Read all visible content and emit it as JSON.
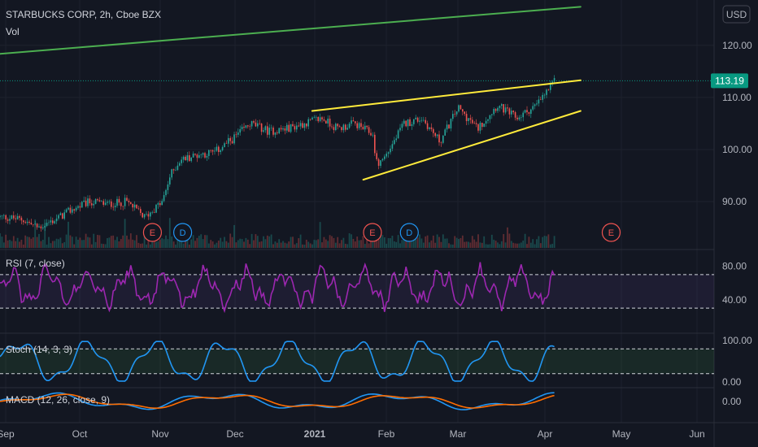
{
  "header": {
    "title": "STARBUCKS CORP, 2h, Cboe BZX",
    "volume_label": "Vol",
    "currency_button": "USD"
  },
  "colors": {
    "background": "#131722",
    "up_candle": "#26a69a",
    "down_candle": "#ef5350",
    "resistance_line": "#4caf50",
    "wedge_lines": "#ffeb3b",
    "rsi_line": "#9c27b0",
    "stoch_line": "#2196f3",
    "macd_line": "#2196f3",
    "signal_line": "#ff6d00",
    "price_tag": "#089981",
    "earnings_marker": "#ef5350",
    "dividend_marker": "#2196f3"
  },
  "chart_data": [
    {
      "type": "candlestick",
      "pane": "price",
      "title": "STARBUCKS CORP, 2h, Cboe BZX",
      "y_ticks": [
        90.0,
        100.0,
        110.0,
        120.0
      ],
      "ylim": [
        80.8,
        128.7
      ],
      "current_price": 113.19,
      "x_ticks": [
        "Sep",
        "Oct",
        "Nov",
        "Dec",
        "2021",
        "Feb",
        "Mar",
        "Apr",
        "May",
        "Jun"
      ],
      "close_series": [
        {
          "x": "2020-09-01",
          "y": 87.0
        },
        {
          "x": "2020-09-08",
          "y": 86.5
        },
        {
          "x": "2020-09-14",
          "y": 85.0
        },
        {
          "x": "2020-09-21",
          "y": 86.5
        },
        {
          "x": "2020-09-28",
          "y": 88.5
        },
        {
          "x": "2020-10-05",
          "y": 90.0
        },
        {
          "x": "2020-10-12",
          "y": 89.5
        },
        {
          "x": "2020-10-19",
          "y": 90.0
        },
        {
          "x": "2020-10-26",
          "y": 87.0
        },
        {
          "x": "2020-11-02",
          "y": 90.0
        },
        {
          "x": "2020-11-05",
          "y": 95.0
        },
        {
          "x": "2020-11-09",
          "y": 98.0
        },
        {
          "x": "2020-11-16",
          "y": 99.0
        },
        {
          "x": "2020-11-23",
          "y": 99.5
        },
        {
          "x": "2020-11-30",
          "y": 102.0
        },
        {
          "x": "2020-12-07",
          "y": 105.0
        },
        {
          "x": "2020-12-14",
          "y": 103.5
        },
        {
          "x": "2020-12-21",
          "y": 104.0
        },
        {
          "x": "2021-01-04",
          "y": 106.0
        },
        {
          "x": "2021-01-11",
          "y": 104.0
        },
        {
          "x": "2021-01-18",
          "y": 105.0
        },
        {
          "x": "2021-01-26",
          "y": 103.0
        },
        {
          "x": "2021-01-28",
          "y": 97.0
        },
        {
          "x": "2021-02-01",
          "y": 99.0
        },
        {
          "x": "2021-02-08",
          "y": 105.0
        },
        {
          "x": "2021-02-15",
          "y": 106.0
        },
        {
          "x": "2021-02-22",
          "y": 101.5
        },
        {
          "x": "2021-03-01",
          "y": 108.0
        },
        {
          "x": "2021-03-08",
          "y": 104.0
        },
        {
          "x": "2021-03-15",
          "y": 108.5
        },
        {
          "x": "2021-03-22",
          "y": 106.0
        },
        {
          "x": "2021-03-29",
          "y": 108.5
        },
        {
          "x": "2021-04-05",
          "y": 113.19
        }
      ],
      "trendlines": [
        {
          "name": "long-term resistance",
          "from": {
            "x": "2020-08-28",
            "y": 118.3
          },
          "to": {
            "x": "2021-04-15",
            "y": 127.4
          }
        },
        {
          "name": "wedge upper",
          "from": {
            "x": "2020-12-31",
            "y": 107.4
          },
          "to": {
            "x": "2021-04-15",
            "y": 113.3
          }
        },
        {
          "name": "wedge lower",
          "from": {
            "x": "2021-01-22",
            "y": 94.2
          },
          "to": {
            "x": "2021-04-15",
            "y": 107.4
          }
        }
      ],
      "events": [
        {
          "type": "E",
          "x": "2020-10-29"
        },
        {
          "type": "D",
          "x": "2020-11-10"
        },
        {
          "type": "E",
          "x": "2021-01-26"
        },
        {
          "type": "D",
          "x": "2021-02-10"
        },
        {
          "type": "E",
          "x": "2021-04-27"
        }
      ]
    },
    {
      "type": "line",
      "pane": "rsi",
      "title": "RSI (7, close)",
      "y_ticks": [
        40.0,
        80.0
      ],
      "ylim": [
        0,
        100
      ],
      "bands": [
        30,
        70
      ]
    },
    {
      "type": "line",
      "pane": "stoch",
      "title": "Stoch (14, 3, 3)",
      "y_ticks": [
        0.0,
        100.0
      ],
      "ylim": [
        -14,
        118
      ],
      "bands": [
        20,
        80
      ]
    },
    {
      "type": "line",
      "pane": "macd",
      "title": "MACD (12, 26, close, 9)",
      "y_ticks": [
        0.0
      ],
      "series": [
        {
          "color": "#2196f3"
        },
        {
          "color": "#ff6d00"
        }
      ]
    }
  ]
}
